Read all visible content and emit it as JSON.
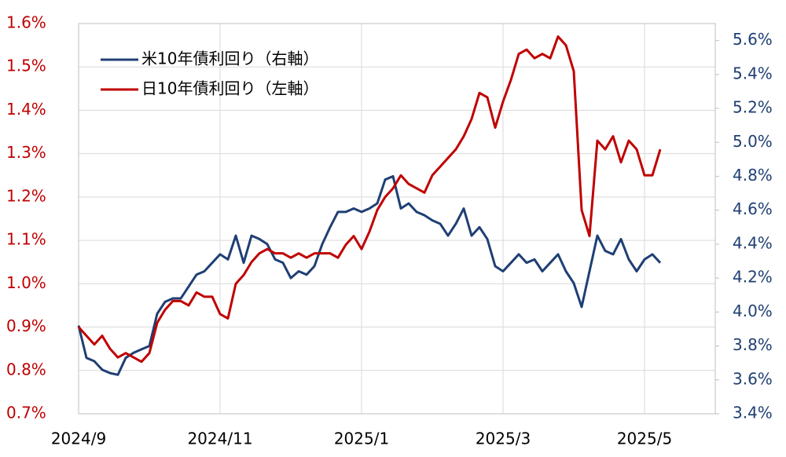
{
  "chart_data": {
    "type": "line",
    "categories": [
      "2024/9",
      null,
      null,
      null,
      null,
      null,
      null,
      null,
      null,
      null,
      null,
      null,
      null,
      null,
      null,
      null,
      null,
      null,
      "2024/11",
      null,
      null,
      null,
      null,
      null,
      null,
      null,
      null,
      null,
      null,
      null,
      null,
      null,
      null,
      null,
      null,
      null,
      "2025/1",
      null,
      null,
      null,
      null,
      null,
      null,
      null,
      null,
      null,
      null,
      null,
      null,
      null,
      null,
      null,
      null,
      null,
      "2025/3",
      null,
      null,
      null,
      null,
      null,
      null,
      null,
      null,
      null,
      null,
      null,
      null,
      null,
      null,
      null,
      null,
      null,
      "2025/5",
      null,
      null
    ],
    "series": [
      {
        "name": "米10年債利回り（右軸）",
        "color": "#1f3f73",
        "axis": "y2",
        "values": [
          3.92,
          3.73,
          3.71,
          3.66,
          3.64,
          3.63,
          3.73,
          3.76,
          3.78,
          3.8,
          3.99,
          4.06,
          4.08,
          4.08,
          4.15,
          4.22,
          4.24,
          4.29,
          4.34,
          4.31,
          4.45,
          4.29,
          4.45,
          4.43,
          4.4,
          4.31,
          4.29,
          4.2,
          4.24,
          4.22,
          4.27,
          4.4,
          4.5,
          4.59,
          4.59,
          4.61,
          4.59,
          4.61,
          4.64,
          4.78,
          4.8,
          4.61,
          4.64,
          4.59,
          4.57,
          4.54,
          4.52,
          4.45,
          4.52,
          4.61,
          4.45,
          4.5,
          4.43,
          4.27,
          4.24,
          4.29,
          4.34,
          4.29,
          4.31,
          4.24,
          4.29,
          4.34,
          4.24,
          4.17,
          4.03,
          4.24,
          4.45,
          4.36,
          4.34,
          4.43,
          4.31,
          4.24,
          4.31,
          4.34,
          4.29
        ]
      },
      {
        "name": "日10年債利回り（左軸）",
        "color": "#c00000",
        "values": [
          0.9,
          0.88,
          0.86,
          0.88,
          0.85,
          0.83,
          0.84,
          0.83,
          0.82,
          0.84,
          0.91,
          0.94,
          0.96,
          0.96,
          0.95,
          0.98,
          0.97,
          0.97,
          0.93,
          0.92,
          1.0,
          1.02,
          1.05,
          1.07,
          1.08,
          1.07,
          1.07,
          1.06,
          1.07,
          1.06,
          1.07,
          1.07,
          1.07,
          1.06,
          1.09,
          1.11,
          1.08,
          1.12,
          1.17,
          1.2,
          1.22,
          1.25,
          1.23,
          1.22,
          1.21,
          1.25,
          1.27,
          1.29,
          1.31,
          1.34,
          1.38,
          1.44,
          1.43,
          1.36,
          1.42,
          1.47,
          1.53,
          1.54,
          1.52,
          1.53,
          1.52,
          1.57,
          1.55,
          1.49,
          1.17,
          1.11,
          1.33,
          1.31,
          1.34,
          1.28,
          1.33,
          1.31,
          1.25,
          1.25,
          1.31
        ]
      }
    ],
    "ylim": [
      0.7,
      1.6
    ],
    "yticks": [
      {
        "value": 0.7,
        "label": "0.7%"
      },
      {
        "value": 0.8,
        "label": "0.8%"
      },
      {
        "value": 0.9,
        "label": "0.9%"
      },
      {
        "value": 1.0,
        "label": "1.0%"
      },
      {
        "value": 1.1,
        "label": "1.1%"
      },
      {
        "value": 1.2,
        "label": "1.2%"
      },
      {
        "value": 1.3,
        "label": "1.3%"
      },
      {
        "value": 1.4,
        "label": "1.4%"
      },
      {
        "value": 1.5,
        "label": "1.5%"
      },
      {
        "value": 1.6,
        "label": "1.6%"
      }
    ],
    "y2lim": [
      3.4,
      5.7
    ],
    "y2ticks": [
      {
        "value": 3.4,
        "label": "3.4%"
      },
      {
        "value": 3.6,
        "label": "3.6%"
      },
      {
        "value": 3.8,
        "label": "3.8%"
      },
      {
        "value": 4.0,
        "label": "4.0%"
      },
      {
        "value": 4.2,
        "label": "4.2%"
      },
      {
        "value": 4.4,
        "label": "4.4%"
      },
      {
        "value": 4.6,
        "label": "4.6%"
      },
      {
        "value": 4.8,
        "label": "4.8%"
      },
      {
        "value": 5.0,
        "label": "5.0%"
      },
      {
        "value": 5.2,
        "label": "5.2%"
      },
      {
        "value": 5.4,
        "label": "5.4%"
      },
      {
        "value": 5.6,
        "label": "5.6%"
      }
    ],
    "grid": true,
    "legend": "top-left"
  }
}
